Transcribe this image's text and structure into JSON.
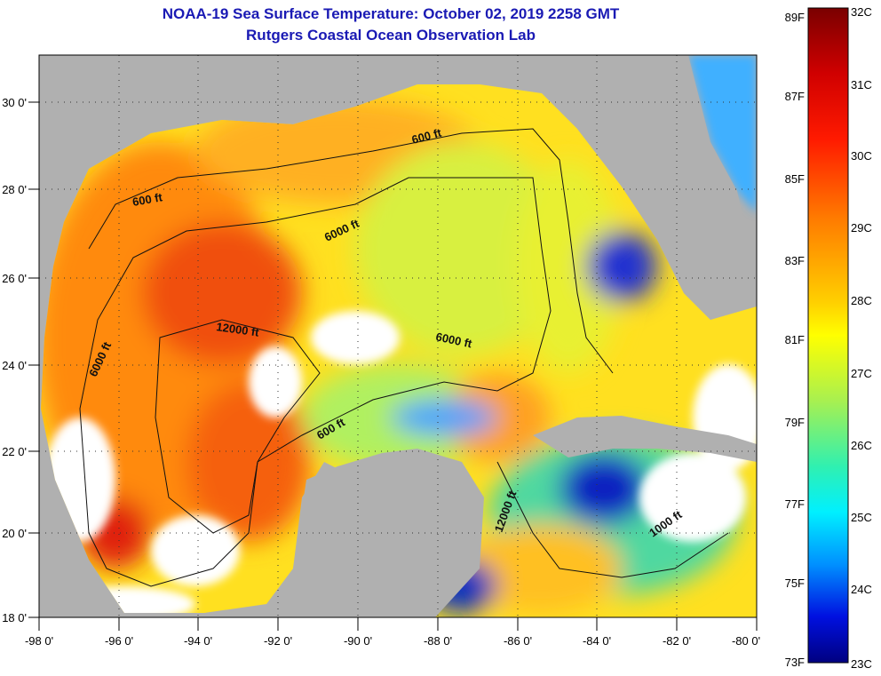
{
  "title": {
    "line1": "NOAA-19 Sea Surface Temperature:  October 02, 2019 2258 GMT",
    "line2": "Rutgers Coastal Ocean Observation Lab"
  },
  "axes": {
    "x_ticks": [
      "-98 0'",
      "-96 0'",
      "-94 0'",
      "-92 0'",
      "-90 0'",
      "-88 0'",
      "-86 0'",
      "-84 0'",
      "-82 0'",
      "-80 0'"
    ],
    "y_ticks": [
      "30 0'",
      "28 0'",
      "26 0'",
      "24 0'",
      "22 0'",
      "20 0'",
      "18 0'"
    ]
  },
  "colorbar": {
    "fahrenheit": [
      "89F",
      "87F",
      "85F",
      "83F",
      "81F",
      "79F",
      "77F",
      "75F",
      "73F"
    ],
    "celsius": [
      "32C",
      "31C",
      "30C",
      "29C",
      "28C",
      "27C",
      "26C",
      "25C",
      "24C",
      "23C"
    ]
  },
  "contours": [
    "600 ft",
    "600 ft",
    "6000 ft",
    "12000 ft",
    "6000 ft",
    "6000 ft",
    "600 ft",
    "12000 ft",
    "1000 ft"
  ],
  "colors": {
    "land": "#b0b0b0",
    "title": "#1a1ab4"
  }
}
